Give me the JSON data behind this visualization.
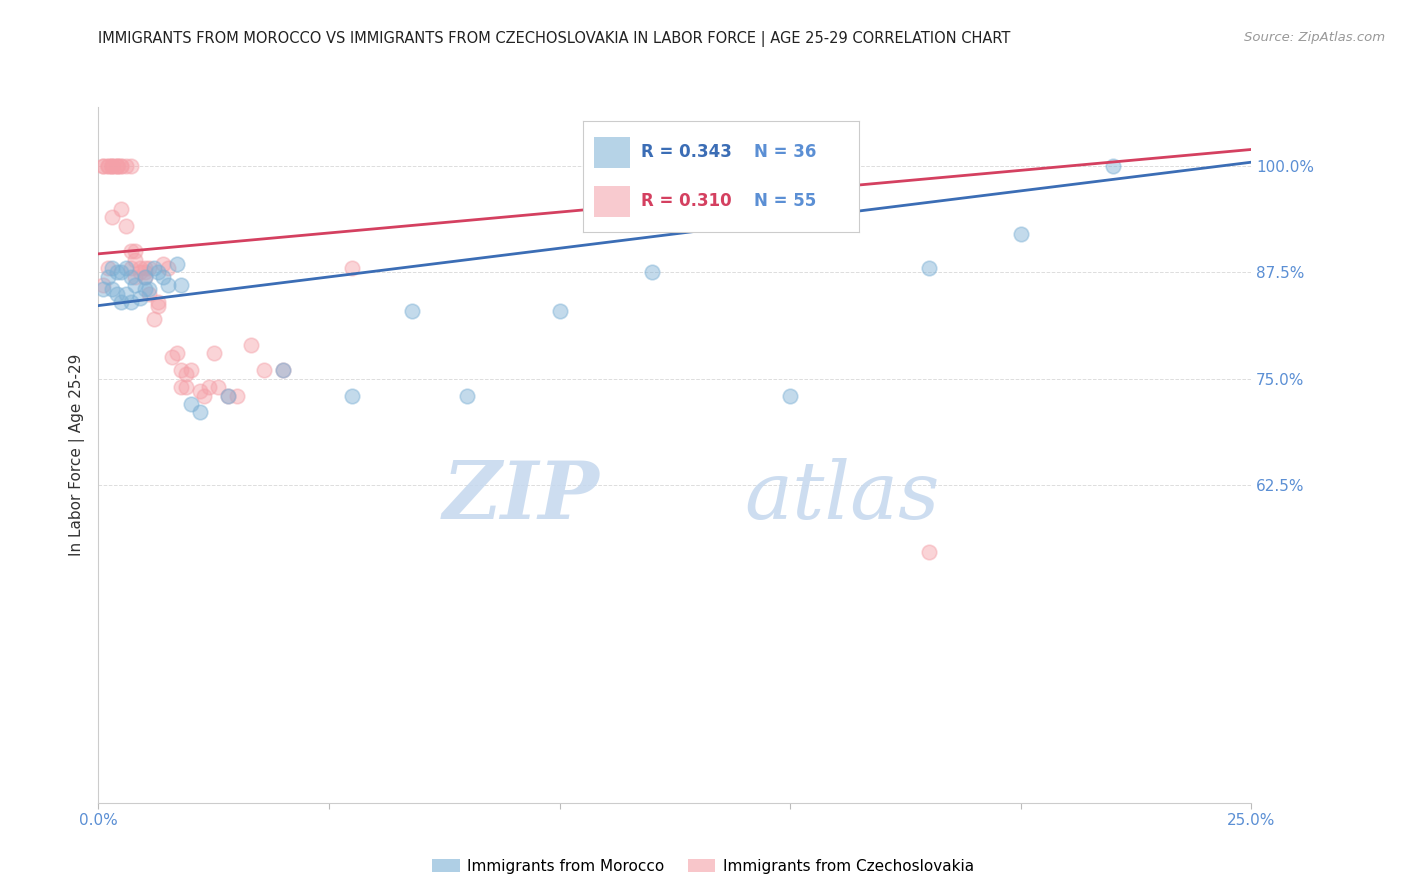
{
  "title": "IMMIGRANTS FROM MOROCCO VS IMMIGRANTS FROM CZECHOSLOVAKIA IN LABOR FORCE | AGE 25-29 CORRELATION CHART",
  "source": "Source: ZipAtlas.com",
  "ylabel": "In Labor Force | Age 25-29",
  "watermark_zip": "ZIP",
  "watermark_atlas": "atlas",
  "legend_blue_R": "R = 0.343",
  "legend_blue_N": "N = 36",
  "legend_pink_R": "R = 0.310",
  "legend_pink_N": "N = 55",
  "legend_blue_label": "Immigrants from Morocco",
  "legend_pink_label": "Immigrants from Czechoslovakia",
  "xlim": [
    0.0,
    0.25
  ],
  "ylim": [
    0.25,
    1.07
  ],
  "yticks": [
    1.0,
    0.875,
    0.75,
    0.625
  ],
  "ytick_labels": [
    "100.0%",
    "87.5%",
    "75.0%",
    "62.5%"
  ],
  "xticks": [
    0.0,
    0.05,
    0.1,
    0.15,
    0.2,
    0.25
  ],
  "xtick_labels": [
    "0.0%",
    "",
    "",
    "",
    "",
    "25.0%"
  ],
  "blue_color": "#7BAFD4",
  "pink_color": "#F4A0A8",
  "blue_line_color": "#3B6DB5",
  "pink_line_color": "#D44060",
  "right_axis_color": "#5B8FD4",
  "title_color": "#222222",
  "grid_color": "#DDDDDD",
  "blue_line_x0": 0.0,
  "blue_line_y0": 0.836,
  "blue_line_x1": 0.25,
  "blue_line_y1": 1.005,
  "pink_line_x0": 0.0,
  "pink_line_y0": 0.897,
  "pink_line_x1": 0.25,
  "pink_line_y1": 1.02,
  "blue_x": [
    0.001,
    0.002,
    0.003,
    0.003,
    0.004,
    0.004,
    0.005,
    0.005,
    0.006,
    0.006,
    0.007,
    0.007,
    0.008,
    0.009,
    0.01,
    0.01,
    0.011,
    0.012,
    0.013,
    0.014,
    0.015,
    0.017,
    0.018,
    0.02,
    0.022,
    0.028,
    0.04,
    0.055,
    0.068,
    0.08,
    0.1,
    0.12,
    0.15,
    0.18,
    0.2,
    0.22
  ],
  "blue_y": [
    0.855,
    0.87,
    0.88,
    0.855,
    0.875,
    0.85,
    0.875,
    0.84,
    0.88,
    0.85,
    0.87,
    0.84,
    0.86,
    0.845,
    0.87,
    0.855,
    0.855,
    0.88,
    0.875,
    0.87,
    0.86,
    0.885,
    0.86,
    0.72,
    0.71,
    0.73,
    0.76,
    0.73,
    0.83,
    0.73,
    0.83,
    0.875,
    0.73,
    0.88,
    0.92,
    1.0
  ],
  "pink_x": [
    0.001,
    0.001,
    0.001,
    0.002,
    0.002,
    0.002,
    0.003,
    0.003,
    0.003,
    0.003,
    0.004,
    0.004,
    0.004,
    0.005,
    0.005,
    0.005,
    0.006,
    0.006,
    0.007,
    0.007,
    0.007,
    0.008,
    0.008,
    0.008,
    0.009,
    0.009,
    0.01,
    0.01,
    0.01,
    0.011,
    0.011,
    0.012,
    0.013,
    0.013,
    0.014,
    0.015,
    0.016,
    0.017,
    0.018,
    0.018,
    0.019,
    0.019,
    0.02,
    0.022,
    0.023,
    0.024,
    0.025,
    0.026,
    0.028,
    0.03,
    0.033,
    0.036,
    0.04,
    0.055,
    0.18
  ],
  "pink_y": [
    1.0,
    1.0,
    0.86,
    1.0,
    1.0,
    0.88,
    1.0,
    1.0,
    1.0,
    0.94,
    1.0,
    1.0,
    1.0,
    1.0,
    1.0,
    0.95,
    0.93,
    1.0,
    1.0,
    0.9,
    0.88,
    0.89,
    0.87,
    0.9,
    0.875,
    0.88,
    0.88,
    0.875,
    0.87,
    0.85,
    0.88,
    0.82,
    0.84,
    0.835,
    0.885,
    0.88,
    0.775,
    0.78,
    0.76,
    0.74,
    0.755,
    0.74,
    0.76,
    0.735,
    0.73,
    0.74,
    0.78,
    0.74,
    0.73,
    0.73,
    0.79,
    0.76,
    0.76,
    0.88,
    0.545
  ]
}
